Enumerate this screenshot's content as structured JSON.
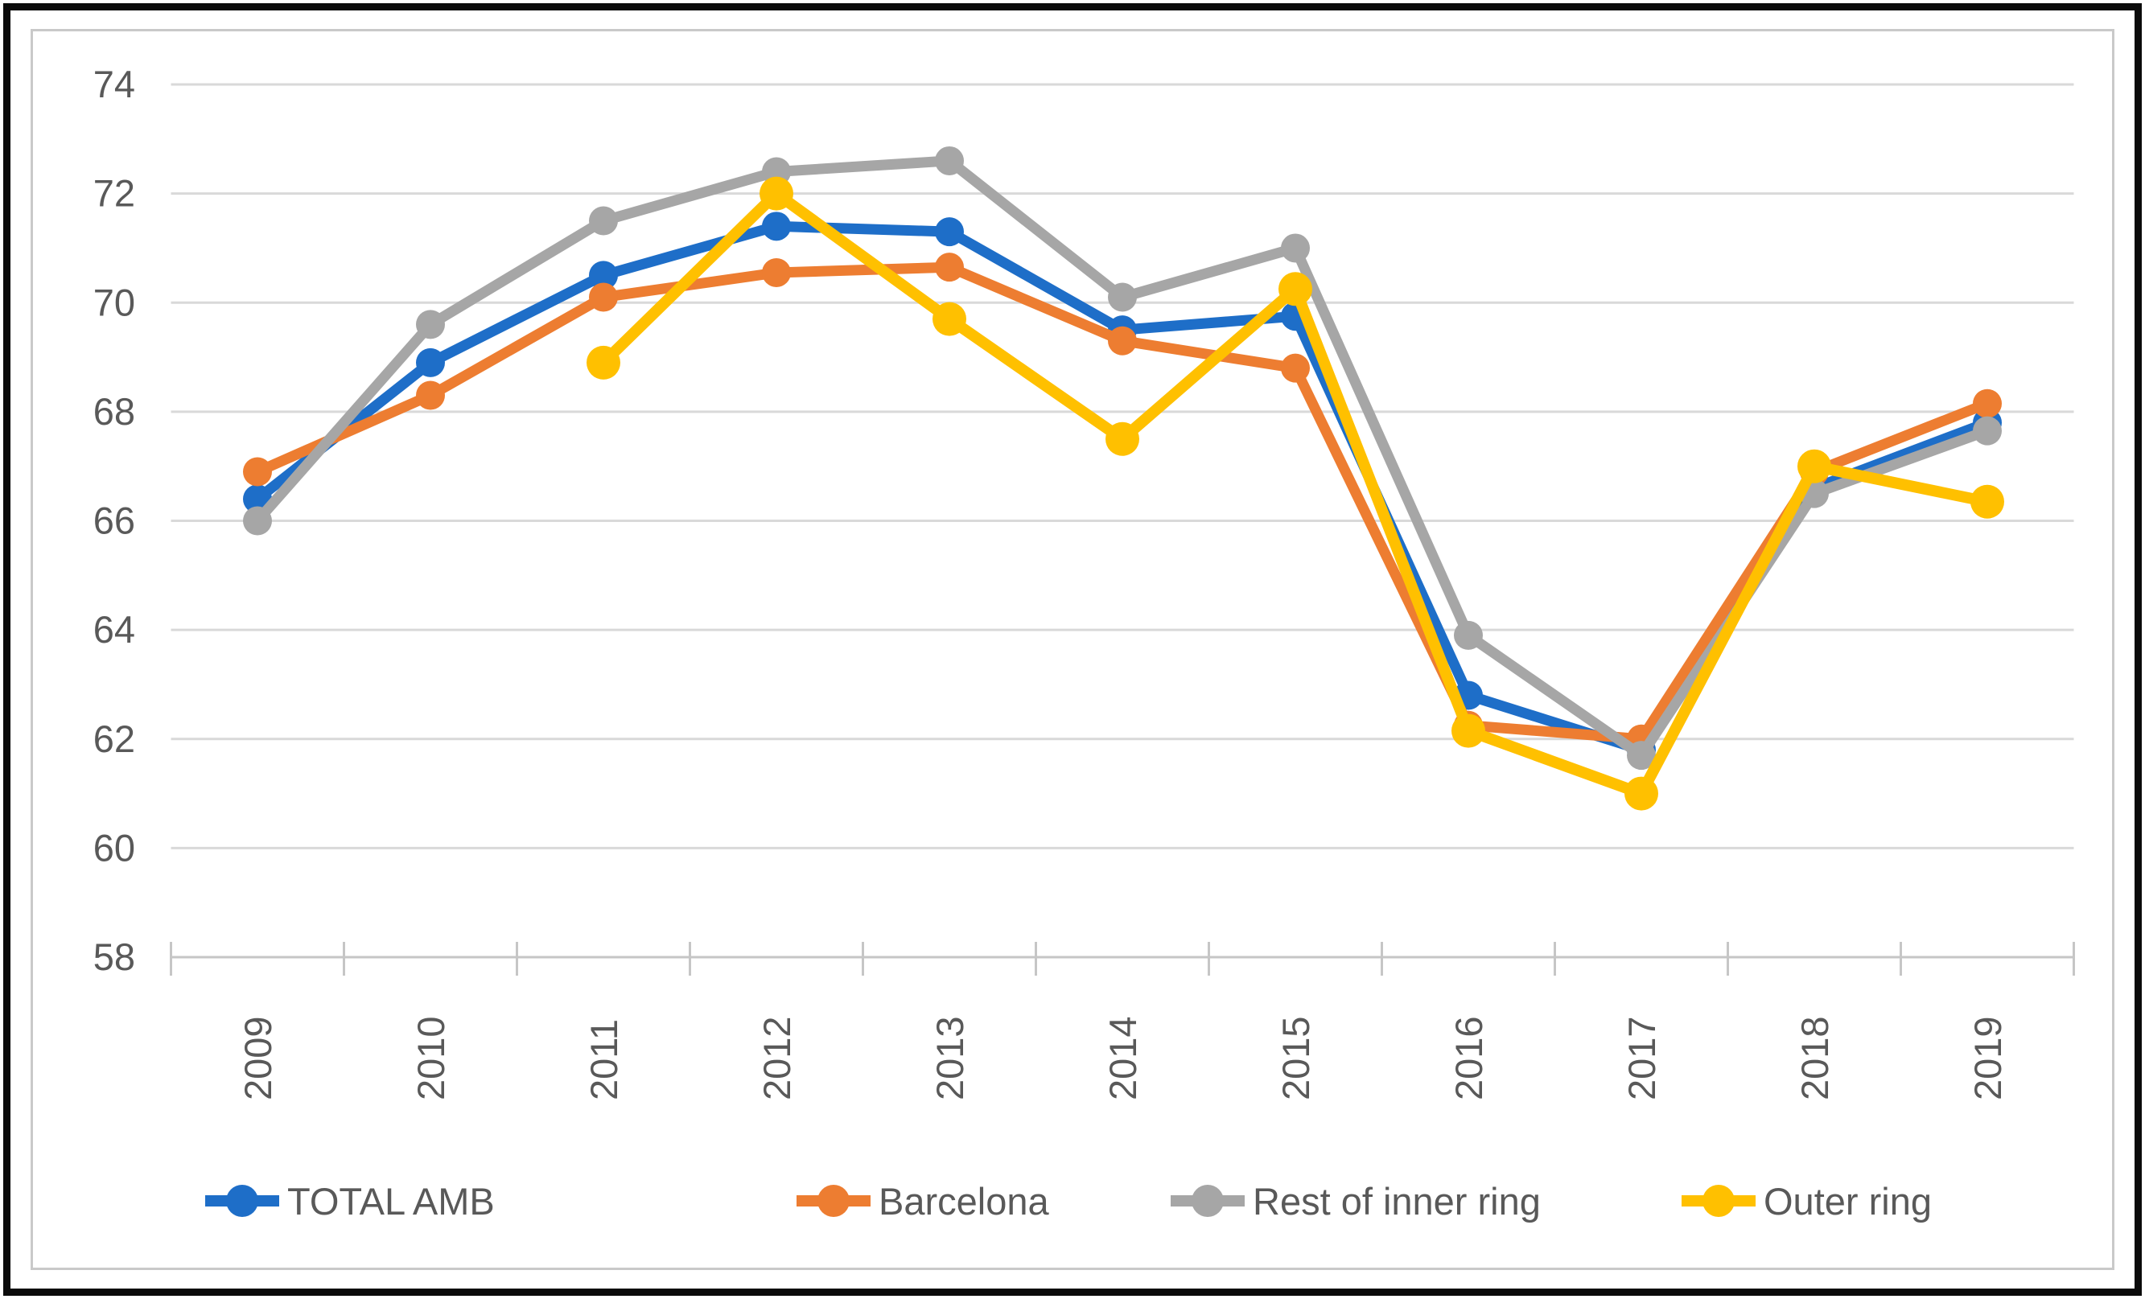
{
  "chart_data": {
    "type": "line",
    "categories": [
      "2009",
      "2010",
      "2011",
      "2012",
      "2013",
      "2014",
      "2015",
      "2016",
      "2017",
      "2018",
      "2019"
    ],
    "series": [
      {
        "name": "TOTAL AMB",
        "color": "#1E6EC8",
        "values": [
          66.4,
          68.9,
          70.5,
          71.4,
          71.3,
          69.5,
          69.75,
          62.8,
          61.8,
          66.6,
          67.8
        ]
      },
      {
        "name": "Barcelona",
        "color": "#ED7D31",
        "values": [
          66.9,
          68.3,
          70.1,
          70.55,
          70.65,
          69.3,
          68.8,
          62.25,
          62.0,
          66.9,
          68.15
        ]
      },
      {
        "name": "Rest of inner ring",
        "color": "#A6A6A6",
        "values": [
          66.0,
          69.6,
          71.5,
          72.4,
          72.6,
          70.1,
          71.0,
          63.9,
          61.7,
          66.5,
          67.65
        ]
      },
      {
        "name": "Outer ring",
        "color": "#FFC000",
        "values": [
          null,
          null,
          68.9,
          72.0,
          69.7,
          67.5,
          70.25,
          62.15,
          61.0,
          67.0,
          66.35
        ]
      }
    ],
    "y_axis": {
      "min": 58,
      "max": 74,
      "step": 2,
      "tick_labels": [
        "58",
        "60",
        "62",
        "64",
        "66",
        "68",
        "70",
        "72",
        "74"
      ]
    },
    "grid": true,
    "legend_position": "bottom",
    "text_color": "#595959",
    "grid_color": "#D9D9D9",
    "axis_color": "#C6C6C6",
    "frame_border_color": "#C9C9C9",
    "outer_border_color": "#0B0B0B"
  }
}
